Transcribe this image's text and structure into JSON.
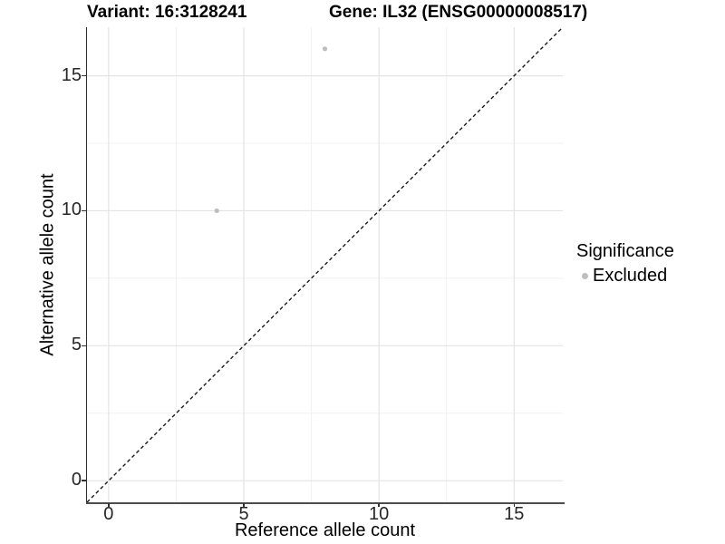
{
  "chart_data": {
    "type": "scatter",
    "title_left": "Variant: 16:3128241",
    "title_right": "Gene: IL32 (ENSG00000008517)",
    "xlabel": "Reference allele count",
    "ylabel": "Alternative allele count",
    "xlim": [
      -0.8,
      16.8
    ],
    "ylim": [
      -0.8,
      16.8
    ],
    "x_major_ticks": [
      0,
      5,
      10,
      15
    ],
    "y_major_ticks": [
      0,
      5,
      10,
      15
    ],
    "x_minor_ticks": [
      2.5,
      7.5,
      12.5
    ],
    "y_minor_ticks": [
      2.5,
      7.5,
      12.5
    ],
    "grid": "major and minor gridlines on white background",
    "legend": {
      "title": "Significance",
      "position": "right",
      "items": [
        {
          "label": "Excluded",
          "color": "#bdbdbd"
        }
      ]
    },
    "series": [
      {
        "name": "Excluded",
        "color": "#bdbdbd",
        "points": [
          {
            "x": 4,
            "y": 10
          },
          {
            "x": 8,
            "y": 16
          }
        ]
      }
    ],
    "reference_line": {
      "slope": 1,
      "intercept": 0,
      "style": "dashed",
      "color": "#1a1a1a"
    },
    "colors": {
      "grid_major": "#e4e4e4",
      "grid_minor": "#f1f1f1",
      "axis_line": "#404040",
      "tick_label": "#262626",
      "point": "#bdbdbd"
    }
  }
}
